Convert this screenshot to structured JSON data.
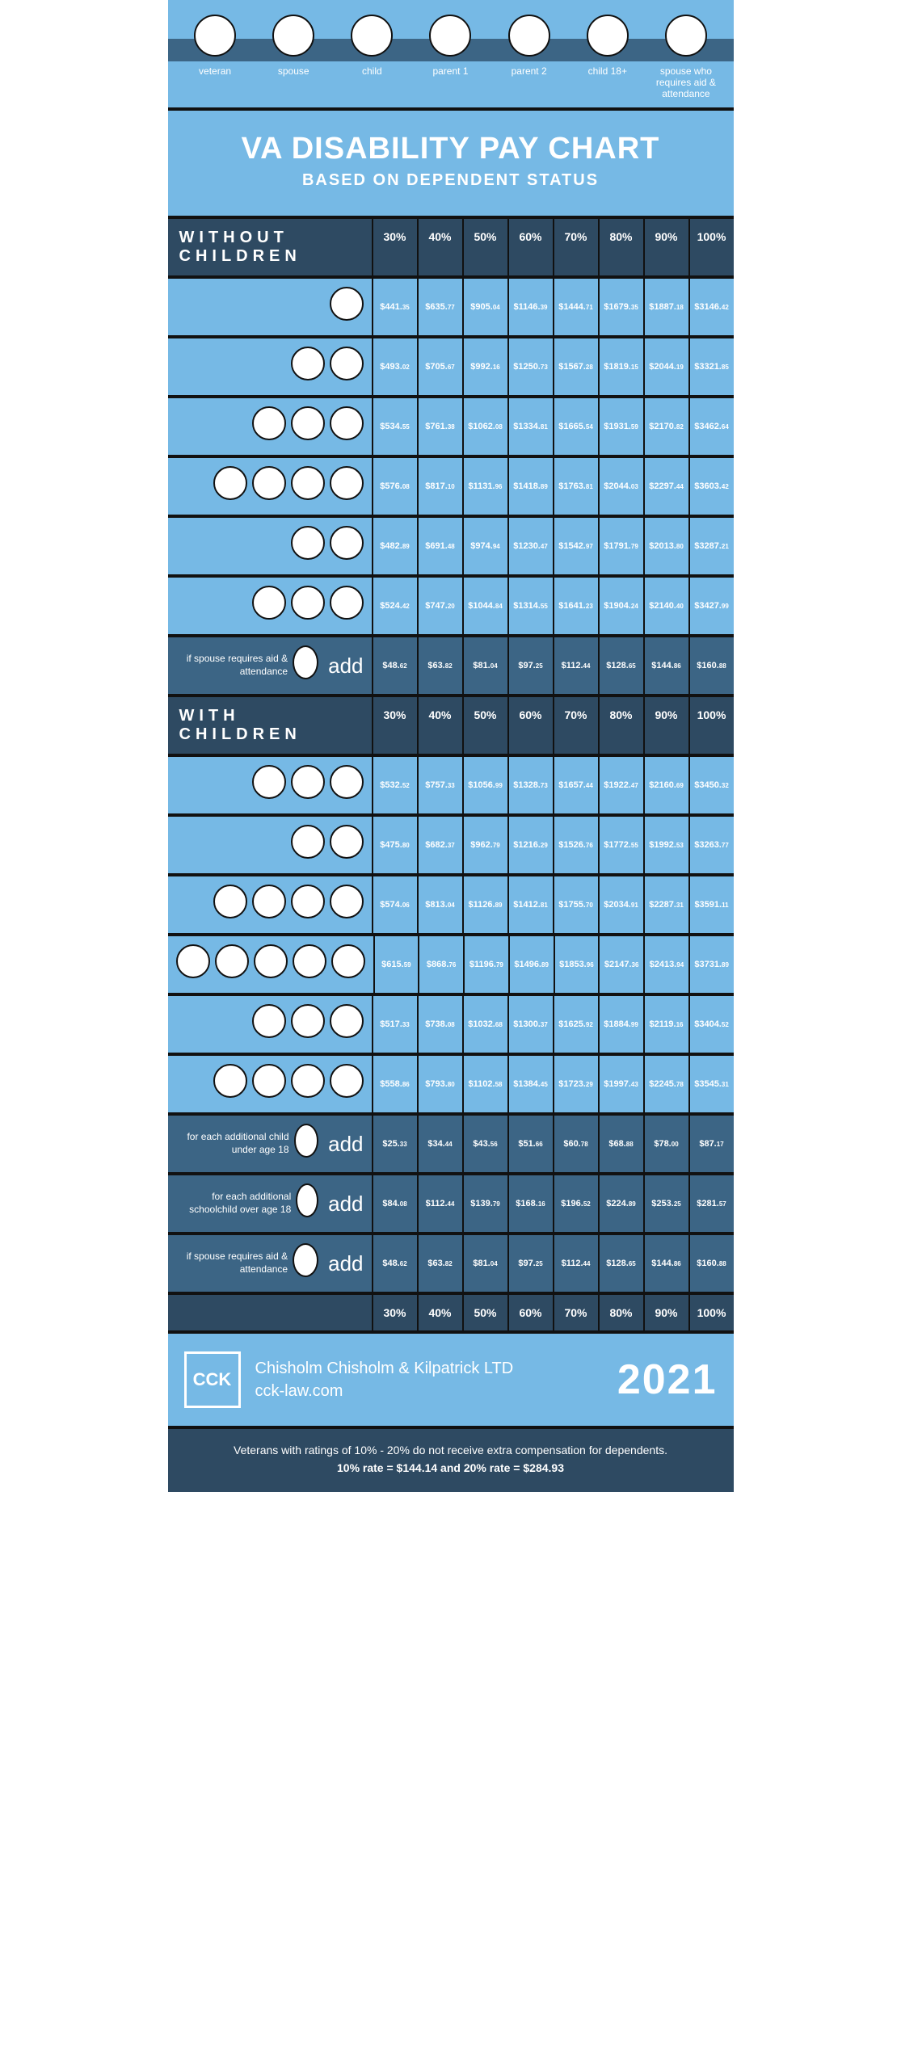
{
  "colors": {
    "bg_dark": "#111111",
    "panel_light": "#76b9e5",
    "panel_mid": "#3c6585",
    "panel_dark": "#2e4a62",
    "text": "#ffffff"
  },
  "legend": [
    {
      "label": "veteran"
    },
    {
      "label": "spouse"
    },
    {
      "label": "child"
    },
    {
      "label": "parent 1"
    },
    {
      "label": "parent 2"
    },
    {
      "label": "child 18+"
    },
    {
      "label": "spouse who requires aid & attendance"
    }
  ],
  "title": "VA DISABILITY PAY CHART",
  "subtitle": "BASED ON DEPENDENT STATUS",
  "percent_cols": [
    "30%",
    "40%",
    "50%",
    "60%",
    "70%",
    "80%",
    "90%",
    "100%"
  ],
  "without_children_label": "WITHOUT CHILDREN",
  "with_children_label": "WITH CHILDREN",
  "rows_without": [
    {
      "icons": 1,
      "vals": [
        "$441.35",
        "$635.77",
        "$905.04",
        "$1146.39",
        "$1444.71",
        "$1679.35",
        "$1887.18",
        "$3146.42"
      ]
    },
    {
      "icons": 2,
      "vals": [
        "$493.02",
        "$705.67",
        "$992.16",
        "$1250.73",
        "$1567.28",
        "$1819.15",
        "$2044.19",
        "$3321.85"
      ]
    },
    {
      "icons": 3,
      "vals": [
        "$534.55",
        "$761.38",
        "$1062.08",
        "$1334.81",
        "$1665.54",
        "$1931.59",
        "$2170.82",
        "$3462.64"
      ]
    },
    {
      "icons": 4,
      "vals": [
        "$576.08",
        "$817.10",
        "$1131.96",
        "$1418.89",
        "$1763.81",
        "$2044.03",
        "$2297.44",
        "$3603.42"
      ]
    },
    {
      "icons": 2,
      "vals": [
        "$482.89",
        "$691.48",
        "$974.94",
        "$1230.47",
        "$1542.97",
        "$1791.79",
        "$2013.80",
        "$3287.21"
      ]
    },
    {
      "icons": 3,
      "vals": [
        "$524.42",
        "$747.20",
        "$1044.84",
        "$1314.55",
        "$1641.23",
        "$1904.24",
        "$2140.40",
        "$3427.99"
      ]
    }
  ],
  "add_without": {
    "text": "if spouse requires aid & attendance",
    "word": "add",
    "vals": [
      "$48.62",
      "$63.82",
      "$81.04",
      "$97.25",
      "$112.44",
      "$128.65",
      "$144.86",
      "$160.88"
    ]
  },
  "rows_with": [
    {
      "icons": 3,
      "vals": [
        "$532.52",
        "$757.33",
        "$1056.99",
        "$1328.73",
        "$1657.44",
        "$1922.47",
        "$2160.69",
        "$3450.32"
      ]
    },
    {
      "icons": 2,
      "vals": [
        "$475.80",
        "$682.37",
        "$962.79",
        "$1216.29",
        "$1526.76",
        "$1772.55",
        "$1992.53",
        "$3263.77"
      ]
    },
    {
      "icons": 4,
      "vals": [
        "$574.06",
        "$813.04",
        "$1126.89",
        "$1412.81",
        "$1755.70",
        "$2034.91",
        "$2287.31",
        "$3591.11"
      ]
    },
    {
      "icons": 5,
      "vals": [
        "$615.59",
        "$868.76",
        "$1196.79",
        "$1496.89",
        "$1853.96",
        "$2147.36",
        "$2413.94",
        "$3731.89"
      ]
    },
    {
      "icons": 3,
      "vals": [
        "$517.33",
        "$738.08",
        "$1032.68",
        "$1300.37",
        "$1625.92",
        "$1884.99",
        "$2119.16",
        "$3404.52"
      ]
    },
    {
      "icons": 4,
      "vals": [
        "$558.86",
        "$793.80",
        "$1102.58",
        "$1384.45",
        "$1723.29",
        "$1997.43",
        "$2245.78",
        "$3545.31"
      ]
    }
  ],
  "adds_with": [
    {
      "text": "for each additional child under age 18",
      "word": "add",
      "vals": [
        "$25.33",
        "$34.44",
        "$43.56",
        "$51.66",
        "$60.78",
        "$68.88",
        "$78.00",
        "$87.17"
      ]
    },
    {
      "text": "for each additional schoolchild over age 18",
      "word": "add",
      "vals": [
        "$84.08",
        "$112.44",
        "$139.79",
        "$168.16",
        "$196.52",
        "$224.89",
        "$253.25",
        "$281.57"
      ]
    },
    {
      "text": "if spouse requires aid & attendance",
      "word": "add",
      "vals": [
        "$48.62",
        "$63.82",
        "$81.04",
        "$97.25",
        "$112.44",
        "$128.65",
        "$144.86",
        "$160.88"
      ]
    }
  ],
  "credit": {
    "logo": "CCK",
    "firm": "Chisholm Chisholm & Kilpatrick LTD",
    "site": "cck-law.com",
    "year": "2021"
  },
  "note_line1": "Veterans with ratings of 10% - 20% do not receive extra compensation for dependents.",
  "note_line2": "10% rate = $144.14  and  20% rate = $284.93"
}
